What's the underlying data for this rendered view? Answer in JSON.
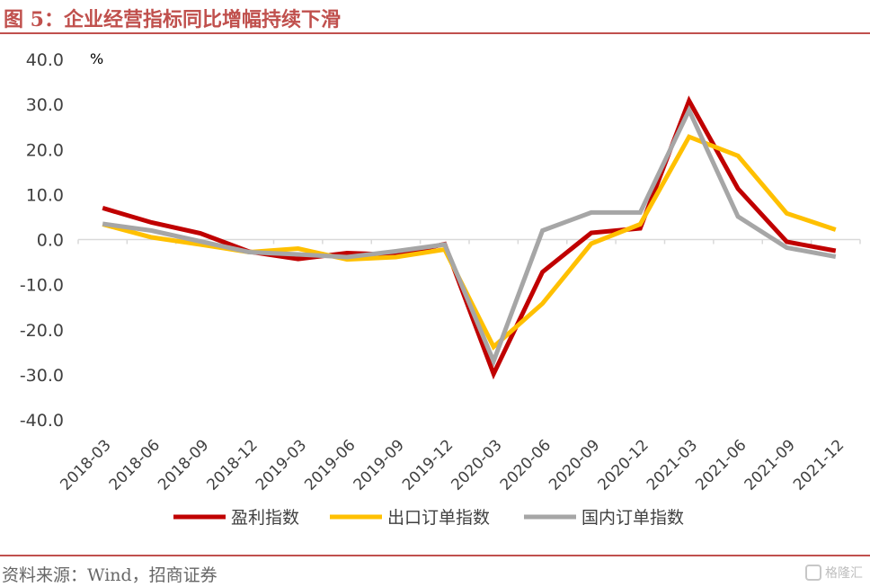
{
  "figure": {
    "title": "图 5：企业经营指标同比增幅持续下滑",
    "source": "资料来源：Wind，招商证券",
    "watermark": "格隆汇"
  },
  "colors": {
    "accent": "#c0504d",
    "profit": "#c00000",
    "export": "#ffc000",
    "domestic": "#a6a6a6",
    "axis": "#d9d9d9",
    "text": "#404040"
  },
  "chart_data": {
    "type": "line",
    "unit_label": "%",
    "categories": [
      "2018-03",
      "2018-06",
      "2018-09",
      "2018-12",
      "2019-03",
      "2019-06",
      "2019-09",
      "2019-12",
      "2020-03",
      "2020-06",
      "2020-09",
      "2020-12",
      "2021-03",
      "2021-06",
      "2021-09",
      "2021-12"
    ],
    "y_ticks": [
      "40.0",
      "30.0",
      "20.0",
      "10.0",
      "0.0",
      "-10.0",
      "-20.0",
      "-30.0",
      "-40.0"
    ],
    "ylim": [
      -40,
      40
    ],
    "grid": false,
    "legend_position": "bottom",
    "series": [
      {
        "name": "盈利指数",
        "color": "#c00000",
        "values": [
          7.0,
          3.8,
          1.4,
          -2.7,
          -4.3,
          -3.0,
          -3.4,
          -1.0,
          -29.8,
          -7.2,
          1.5,
          2.5,
          30.8,
          11.3,
          -0.5,
          -2.5
        ]
      },
      {
        "name": "出口订单指数",
        "color": "#ffc000",
        "values": [
          3.4,
          0.5,
          -1.1,
          -2.8,
          -2.0,
          -4.4,
          -3.9,
          -2.2,
          -23.8,
          -14.2,
          -0.9,
          3.4,
          22.8,
          18.6,
          5.8,
          2.2
        ]
      },
      {
        "name": "国内订单指数",
        "color": "#a6a6a6",
        "values": [
          3.5,
          2.0,
          -0.4,
          -2.8,
          -3.3,
          -3.9,
          -2.6,
          -1.1,
          -27.0,
          2.0,
          6.0,
          6.0,
          28.7,
          5.1,
          -1.8,
          -3.8
        ]
      }
    ]
  }
}
